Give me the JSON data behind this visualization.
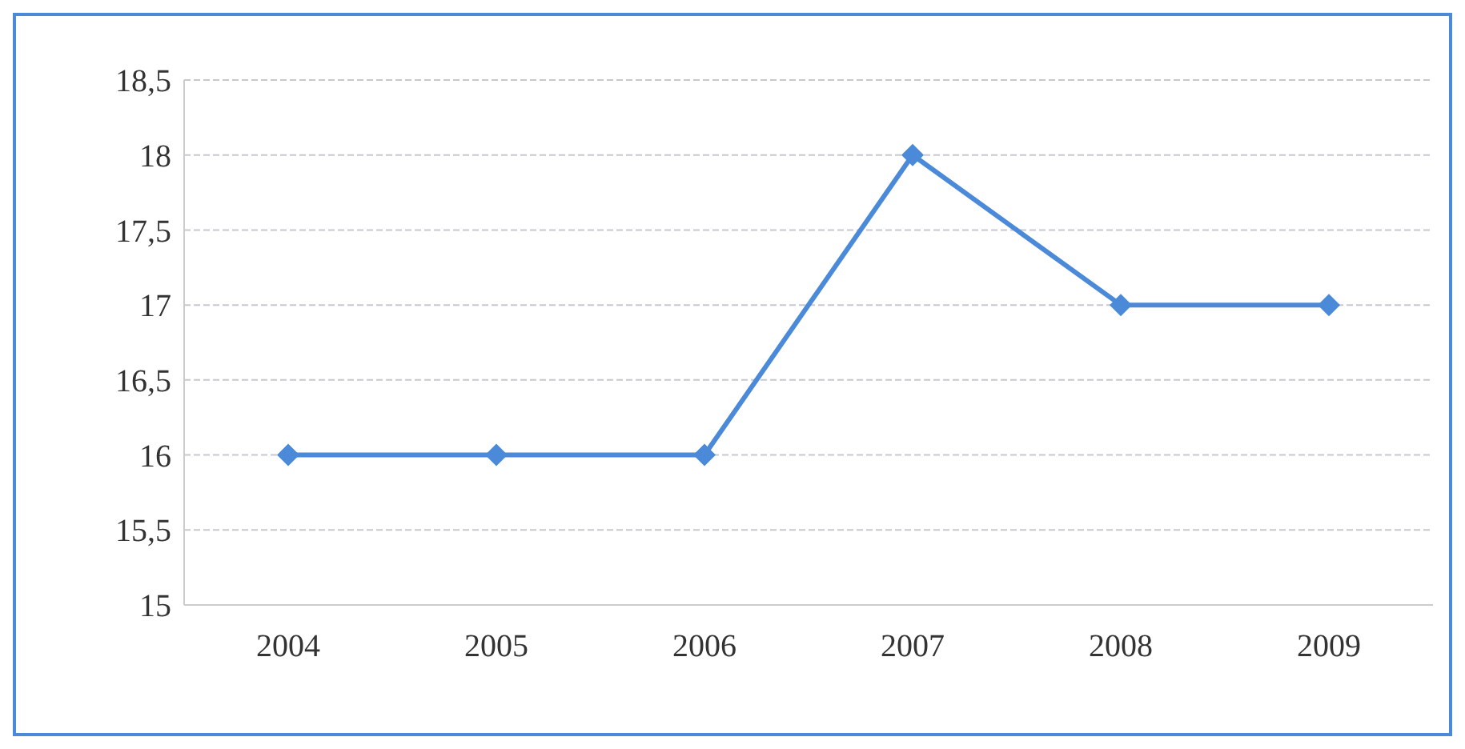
{
  "chart_data": {
    "type": "line",
    "categories": [
      "2004",
      "2005",
      "2006",
      "2007",
      "2008",
      "2009"
    ],
    "series": [
      {
        "color": "#4a8ad8",
        "values": [
          16,
          16,
          16,
          18,
          17,
          17
        ]
      }
    ],
    "ylim": [
      15,
      18.5
    ],
    "yticks": [
      15,
      {
        "value": 15.5,
        "label": "15,5"
      },
      16,
      {
        "value": 16.5,
        "label": "16,5"
      },
      17,
      {
        "value": 17.5,
        "label": "17,5"
      },
      18,
      {
        "value": 18.5,
        "label": "18,5"
      }
    ],
    "grid": "y",
    "marker": "diamond",
    "line_style": "solid",
    "legend": false
  }
}
